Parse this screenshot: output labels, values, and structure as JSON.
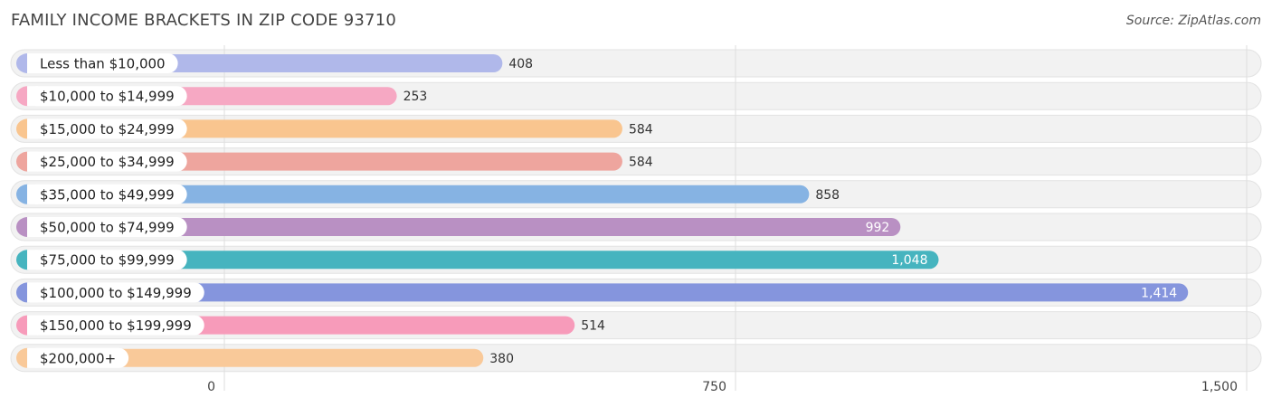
{
  "header": {
    "title": "FAMILY INCOME BRACKETS IN ZIP CODE 93710",
    "source": "Source: ZipAtlas.com"
  },
  "chart_data": {
    "type": "bar",
    "orientation": "horizontal",
    "title": "FAMILY INCOME BRACKETS IN ZIP CODE 93710",
    "categories": [
      "Less than $10,000",
      "$10,000 to $14,999",
      "$15,000 to $24,999",
      "$25,000 to $34,999",
      "$35,000 to $49,999",
      "$50,000 to $74,999",
      "$75,000 to $99,999",
      "$100,000 to $149,999",
      "$150,000 to $199,999",
      "$200,000+"
    ],
    "values": [
      408,
      253,
      584,
      584,
      858,
      992,
      1048,
      1414,
      514,
      380
    ],
    "value_labels": [
      "408",
      "253",
      "584",
      "584",
      "858",
      "992",
      "1,048",
      "1,414",
      "514",
      "380"
    ],
    "colors": [
      "#b0b8ea",
      "#f6a8c3",
      "#f9c58f",
      "#eea59e",
      "#86b3e3",
      "#b990c3",
      "#46b4bf",
      "#8595dd",
      "#f79bba",
      "#f9c999"
    ],
    "xlim": [
      0,
      1500
    ],
    "xticks": [
      0,
      750,
      1500
    ],
    "xtick_labels": [
      "0",
      "750",
      "1,500"
    ],
    "grid": true
  }
}
